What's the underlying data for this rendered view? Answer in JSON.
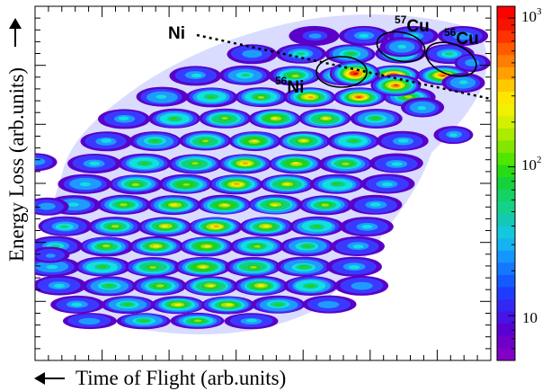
{
  "chart_data": {
    "type": "heatmap",
    "xlabel": "Time of Flight (arb.units)",
    "ylabel": "Energy Loss (arb.units)",
    "colorbar": {
      "scale": "log",
      "range": [
        5,
        1200
      ],
      "tick_labels": [
        {
          "value": 10,
          "label": "10"
        },
        {
          "value": 100,
          "label": "10",
          "exponent": "2"
        },
        {
          "value": 1000,
          "label": "10",
          "exponent": "3"
        }
      ]
    },
    "annotations": {
      "ni_line": {
        "label": "Ni"
      },
      "ni56": {
        "mass": "56",
        "element": "Ni"
      },
      "cu57": {
        "mass": "57",
        "element": "Cu"
      },
      "cu56": {
        "mass": "56",
        "element": "Cu"
      }
    },
    "colors": {
      "palette": [
        "#5a00c8",
        "#3a3aff",
        "#1f9bff",
        "#10e0e0",
        "#10d080",
        "#20d020",
        "#a8e010",
        "#f0f000",
        "#ff9a00",
        "#ff3a00",
        "#e00000"
      ]
    }
  }
}
